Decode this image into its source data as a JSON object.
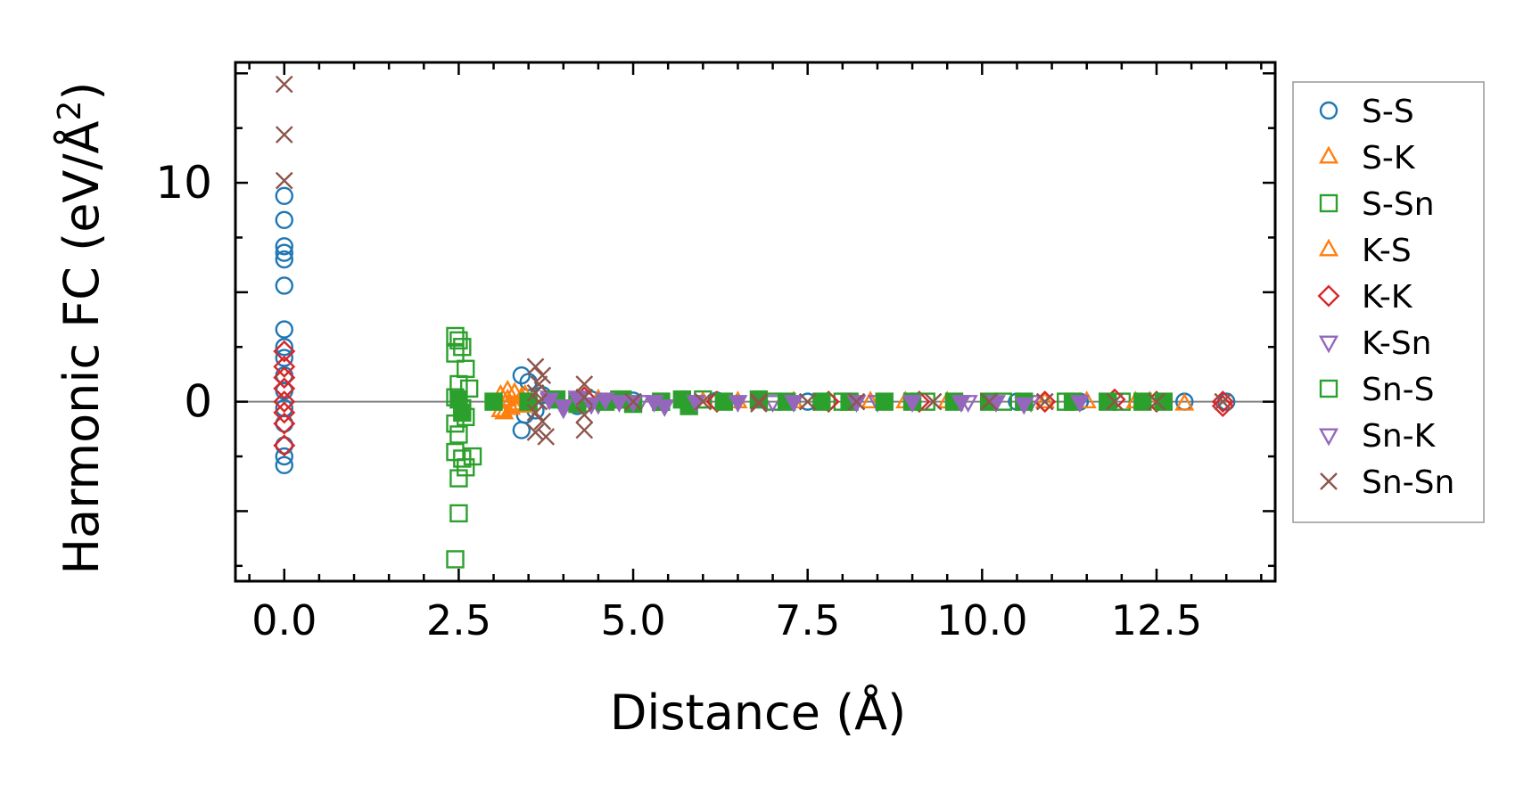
{
  "chart_data": {
    "type": "scatter",
    "title": "",
    "xlabel": "Distance (Å)",
    "ylabel_main": "Harmonic FC (eV/Å",
    "ylabel_sup": "2",
    "ylabel_close": ")",
    "xlim": [
      -0.7,
      14.2
    ],
    "ylim": [
      -8.2,
      15.5
    ],
    "xticks": [
      0.0,
      2.5,
      5.0,
      7.5,
      10.0,
      12.5
    ],
    "xtick_labels": [
      "0.0",
      "2.5",
      "5.0",
      "7.5",
      "10.0",
      "12.5"
    ],
    "yticks": [
      0,
      10
    ],
    "ytick_labels": [
      "0",
      "10"
    ],
    "zero_line": 0,
    "legend_position": "outside-right",
    "series": [
      {
        "name": "S-S",
        "marker": "circle",
        "fill": "none",
        "color": "#1f77b4",
        "points": [
          [
            0,
            9.4
          ],
          [
            0,
            8.3
          ],
          [
            0,
            7.1
          ],
          [
            0,
            6.8
          ],
          [
            0,
            6.5
          ],
          [
            0,
            5.3
          ],
          [
            0,
            3.3
          ],
          [
            0,
            2.5
          ],
          [
            0,
            2.0
          ],
          [
            0,
            1.2
          ],
          [
            0,
            0.5
          ],
          [
            0,
            -0.3
          ],
          [
            0,
            -1.0
          ],
          [
            0,
            -2.0
          ],
          [
            0,
            -2.5
          ],
          [
            0,
            -2.9
          ],
          [
            3.4,
            1.2
          ],
          [
            3.45,
            -0.6
          ],
          [
            3.4,
            -1.3
          ],
          [
            3.5,
            0.9
          ],
          [
            3.6,
            -0.4
          ],
          [
            3.7,
            0.3
          ],
          [
            4.2,
            -0.2
          ],
          [
            4.4,
            0.1
          ],
          [
            5.0,
            0.05
          ],
          [
            6.2,
            0.05
          ],
          [
            7.5,
            0
          ],
          [
            9.0,
            0
          ],
          [
            10.5,
            0
          ],
          [
            11.4,
            0
          ],
          [
            12.9,
            0
          ],
          [
            13.5,
            0
          ]
        ]
      },
      {
        "name": "S-K",
        "marker": "triangle-up",
        "fill": "none",
        "color": "#ff7f0e",
        "points": [
          [
            3.1,
            0.3
          ],
          [
            3.15,
            -0.5
          ],
          [
            3.2,
            0.1
          ],
          [
            3.25,
            -0.3
          ],
          [
            3.3,
            0.4
          ],
          [
            3.35,
            -0.1
          ],
          [
            3.4,
            0.2
          ],
          [
            3.5,
            -0.2
          ],
          [
            4.5,
            0.1
          ],
          [
            6.0,
            0
          ],
          [
            7.3,
            0
          ],
          [
            8.4,
            0
          ],
          [
            9.5,
            0
          ],
          [
            11.5,
            0
          ],
          [
            12.4,
            0
          ],
          [
            12.9,
            -0.1
          ]
        ]
      },
      {
        "name": "S-Sn",
        "marker": "square",
        "fill": "none",
        "color": "#2ca02c",
        "points": [
          [
            2.45,
            3.0
          ],
          [
            2.5,
            2.8
          ],
          [
            2.55,
            2.5
          ],
          [
            2.45,
            2.2
          ],
          [
            2.6,
            1.5
          ],
          [
            2.5,
            0.8
          ],
          [
            2.65,
            0.6
          ],
          [
            2.45,
            0.2
          ],
          [
            2.55,
            -0.3
          ],
          [
            2.6,
            -0.7
          ],
          [
            2.45,
            -1.0
          ],
          [
            2.5,
            -1.5
          ],
          [
            2.45,
            -2.3
          ],
          [
            2.55,
            -2.6
          ],
          [
            2.7,
            -2.5
          ],
          [
            2.6,
            -3.0
          ],
          [
            2.5,
            -3.5
          ],
          [
            2.5,
            -5.1
          ],
          [
            2.45,
            -7.2
          ],
          [
            4.8,
            0.1
          ],
          [
            5.4,
            0
          ],
          [
            6.0,
            0.1
          ],
          [
            7.0,
            0
          ],
          [
            8.0,
            0
          ],
          [
            9.2,
            0
          ],
          [
            10.3,
            0
          ],
          [
            11.2,
            0
          ],
          [
            12.0,
            0
          ]
        ]
      },
      {
        "name": "K-S",
        "marker": "triangle-up",
        "fill": "none",
        "color": "#ff7f0e",
        "points": [
          [
            3.1,
            -0.4
          ],
          [
            3.2,
            0.5
          ],
          [
            3.3,
            -0.2
          ],
          [
            3.45,
            0.3
          ],
          [
            4.6,
            -0.1
          ],
          [
            6.5,
            0
          ],
          [
            8.9,
            0
          ],
          [
            10.9,
            0
          ],
          [
            12.2,
            0
          ]
        ]
      },
      {
        "name": "K-K",
        "marker": "diamond",
        "fill": "none",
        "color": "#d62728",
        "points": [
          [
            0,
            2.3
          ],
          [
            0,
            1.6
          ],
          [
            0,
            1.1
          ],
          [
            0,
            0.6
          ],
          [
            0,
            0
          ],
          [
            0,
            -0.5
          ],
          [
            0,
            -1.0
          ],
          [
            0,
            -2.0
          ],
          [
            4.3,
            0.2
          ],
          [
            6.2,
            0
          ],
          [
            7.8,
            0
          ],
          [
            9.1,
            0
          ],
          [
            10.9,
            0
          ],
          [
            11.9,
            0.1
          ],
          [
            12.5,
            0
          ],
          [
            13.45,
            0
          ],
          [
            13.45,
            -0.2
          ]
        ]
      },
      {
        "name": "K-Sn",
        "marker": "triangle-down",
        "fill": "none",
        "color": "#9467bd",
        "points": [
          [
            3.8,
            0.2
          ],
          [
            4.0,
            -0.3
          ],
          [
            4.2,
            0.1
          ],
          [
            4.5,
            -0.1
          ],
          [
            5.1,
            0
          ],
          [
            5.9,
            0
          ],
          [
            7.0,
            0
          ],
          [
            8.5,
            0
          ],
          [
            9.8,
            0
          ],
          [
            10.7,
            0
          ]
        ]
      },
      {
        "name": "Sn-S",
        "marker": "square",
        "fill": "solid",
        "color": "#2ca02c",
        "points": [
          [
            2.5,
            0.1
          ],
          [
            2.55,
            -0.5
          ],
          [
            3.0,
            0
          ],
          [
            3.5,
            0
          ],
          [
            3.9,
            0.1
          ],
          [
            4.2,
            -0.1
          ],
          [
            4.6,
            0
          ],
          [
            4.85,
            0.1
          ],
          [
            5.0,
            -0.1
          ],
          [
            5.4,
            0
          ],
          [
            5.7,
            0.1
          ],
          [
            5.8,
            -0.2
          ],
          [
            6.3,
            0
          ],
          [
            6.8,
            0.1
          ],
          [
            7.2,
            0
          ],
          [
            7.7,
            0
          ],
          [
            8.1,
            0
          ],
          [
            8.6,
            0
          ],
          [
            9.0,
            0
          ],
          [
            9.6,
            0
          ],
          [
            10.1,
            0
          ],
          [
            10.6,
            0
          ],
          [
            11.3,
            0
          ],
          [
            11.8,
            0
          ],
          [
            12.3,
            0
          ],
          [
            12.6,
            0
          ]
        ]
      },
      {
        "name": "Sn-K",
        "marker": "triangle-down",
        "fill": "solid",
        "color": "#9467bd",
        "points": [
          [
            3.8,
            0.1
          ],
          [
            4.0,
            -0.2
          ],
          [
            4.2,
            0.2
          ],
          [
            4.4,
            -0.1
          ],
          [
            4.6,
            0.1
          ],
          [
            4.8,
            0
          ],
          [
            5.0,
            0
          ],
          [
            5.3,
            0
          ],
          [
            5.45,
            -0.2
          ],
          [
            5.9,
            0
          ],
          [
            6.5,
            0
          ],
          [
            7.3,
            0
          ],
          [
            8.2,
            0
          ],
          [
            9.0,
            0
          ],
          [
            9.7,
            0
          ],
          [
            10.2,
            0
          ],
          [
            10.6,
            -0.1
          ],
          [
            11.4,
            0
          ]
        ]
      },
      {
        "name": "Sn-Sn",
        "marker": "x",
        "fill": "none",
        "color": "#8c564b",
        "points": [
          [
            0,
            14.5
          ],
          [
            0,
            12.2
          ],
          [
            0,
            10.1
          ],
          [
            3.6,
            1.6
          ],
          [
            3.7,
            1.2
          ],
          [
            3.65,
            0.8
          ],
          [
            3.6,
            0.4
          ],
          [
            3.65,
            0
          ],
          [
            3.6,
            -0.5
          ],
          [
            3.7,
            -0.9
          ],
          [
            3.6,
            -1.4
          ],
          [
            3.75,
            -1.6
          ],
          [
            4.3,
            0.8
          ],
          [
            4.3,
            0.2
          ],
          [
            4.3,
            -0.6
          ],
          [
            4.3,
            -1.3
          ],
          [
            5.0,
            0
          ],
          [
            6.0,
            0
          ],
          [
            6.8,
            0
          ],
          [
            6.8,
            -0.1
          ],
          [
            7.5,
            0
          ],
          [
            8.2,
            0
          ],
          [
            9.3,
            0
          ],
          [
            10.1,
            0
          ],
          [
            10.9,
            0
          ],
          [
            11.9,
            0
          ],
          [
            12.5,
            0
          ],
          [
            13.45,
            0
          ]
        ]
      }
    ]
  }
}
